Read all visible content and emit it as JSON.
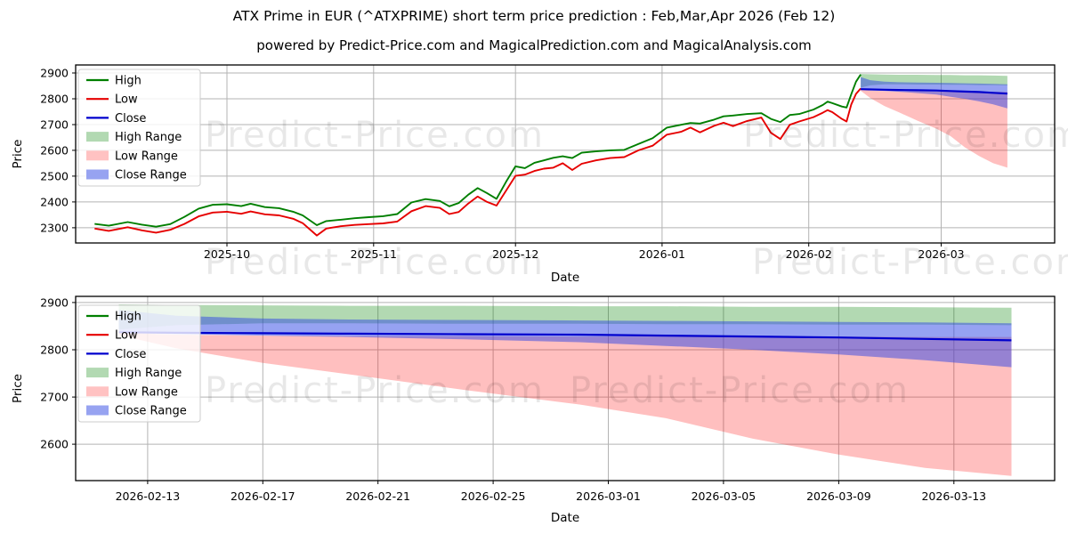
{
  "figure": {
    "title": "ATX Prime in EUR (^ATXPRIME) short term price prediction : Feb,Mar,Apr 2026 (Feb 12)",
    "subtitle": "powered by Predict-Price.com and MagicalPrediction.com and MagicalAnalysis.com",
    "watermark": "Predict-Price.com"
  },
  "colors": {
    "high": "#007f00",
    "low": "#e60000",
    "close": "#0000cd",
    "high_range": "rgba(0,128,0,0.30)",
    "low_range": "rgba(255,0,0,0.25)",
    "close_range": "rgba(45,70,230,0.50)",
    "grid": "#b3b3b3",
    "spine": "#000000",
    "watermark": "rgba(0,0,0,0.09)",
    "legend_bg": "rgba(255,255,255,0.8)",
    "legend_border": "#cccccc"
  },
  "legend": {
    "entries": [
      {
        "label": "High",
        "type": "line",
        "color": "#007f00"
      },
      {
        "label": "Low",
        "type": "line",
        "color": "#e60000"
      },
      {
        "label": "Close",
        "type": "line",
        "color": "#0000cd"
      },
      {
        "label": "High Range",
        "type": "patch",
        "color": "#b2d9b2"
      },
      {
        "label": "Low Range",
        "type": "patch",
        "color": "#ffc2c2"
      },
      {
        "label": "Close Range",
        "type": "patch",
        "color": "#97a3f1"
      }
    ]
  },
  "history": {
    "dates": [
      "2025-09-03",
      "2025-09-06",
      "2025-09-10",
      "2025-09-13",
      "2025-09-16",
      "2025-09-19",
      "2025-09-22",
      "2025-09-25",
      "2025-09-28",
      "2025-10-01",
      "2025-10-04",
      "2025-10-06",
      "2025-10-09",
      "2025-10-12",
      "2025-10-15",
      "2025-10-17",
      "2025-10-20",
      "2025-10-22",
      "2025-10-25",
      "2025-10-28",
      "2025-10-31",
      "2025-11-03",
      "2025-11-06",
      "2025-11-09",
      "2025-11-12",
      "2025-11-15",
      "2025-11-17",
      "2025-11-19",
      "2025-11-21",
      "2025-11-23",
      "2025-11-25",
      "2025-11-27",
      "2025-11-29",
      "2025-12-01",
      "2025-12-03",
      "2025-12-05",
      "2025-12-07",
      "2025-12-09",
      "2025-12-11",
      "2025-12-13",
      "2025-12-15",
      "2025-12-18",
      "2025-12-21",
      "2025-12-24",
      "2025-12-27",
      "2025-12-30",
      "2026-01-02",
      "2026-01-05",
      "2026-01-07",
      "2026-01-09",
      "2026-01-12",
      "2026-01-14",
      "2026-01-16",
      "2026-01-19",
      "2026-01-22",
      "2026-01-24",
      "2026-01-26",
      "2026-01-28",
      "2026-01-30",
      "2026-02-02",
      "2026-02-04",
      "2026-02-05",
      "2026-02-06",
      "2026-02-08",
      "2026-02-09",
      "2026-02-10",
      "2026-02-11",
      "2026-02-12"
    ],
    "high": [
      2315,
      2308,
      2322,
      2312,
      2304,
      2314,
      2342,
      2374,
      2389,
      2391,
      2384,
      2393,
      2380,
      2376,
      2362,
      2348,
      2310,
      2326,
      2331,
      2337,
      2341,
      2345,
      2353,
      2398,
      2411,
      2404,
      2383,
      2396,
      2428,
      2454,
      2434,
      2412,
      2478,
      2538,
      2531,
      2552,
      2561,
      2571,
      2577,
      2570,
      2591,
      2596,
      2600,
      2602,
      2625,
      2647,
      2688,
      2699,
      2706,
      2704,
      2719,
      2732,
      2735,
      2741,
      2744,
      2722,
      2710,
      2737,
      2741,
      2758,
      2776,
      2789,
      2783,
      2770,
      2766,
      2818,
      2866,
      2894
    ],
    "low": [
      2297,
      2288,
      2302,
      2290,
      2281,
      2292,
      2315,
      2344,
      2359,
      2362,
      2354,
      2363,
      2352,
      2348,
      2335,
      2318,
      2270,
      2297,
      2306,
      2311,
      2314,
      2317,
      2324,
      2364,
      2384,
      2377,
      2353,
      2361,
      2394,
      2421,
      2400,
      2386,
      2444,
      2501,
      2506,
      2520,
      2529,
      2533,
      2550,
      2524,
      2548,
      2561,
      2570,
      2574,
      2600,
      2618,
      2661,
      2672,
      2688,
      2670,
      2695,
      2707,
      2694,
      2714,
      2727,
      2668,
      2644,
      2699,
      2712,
      2729,
      2746,
      2756,
      2748,
      2722,
      2712,
      2778,
      2819,
      2840
    ]
  },
  "prediction": {
    "dates": [
      "2026-02-12",
      "2026-02-14",
      "2026-02-17",
      "2026-02-20",
      "2026-02-24",
      "2026-02-28",
      "2026-03-03",
      "2026-03-06",
      "2026-03-09",
      "2026-03-12",
      "2026-03-15"
    ],
    "close": [
      2837,
      2836,
      2835,
      2834,
      2833,
      2832,
      2830,
      2828,
      2826,
      2823,
      2820
    ],
    "close_top": [
      2884,
      2872,
      2866,
      2864,
      2863,
      2862,
      2861,
      2860,
      2859,
      2858,
      2856
    ],
    "close_bottom": [
      2836,
      2833,
      2830,
      2827,
      2822,
      2816,
      2808,
      2800,
      2790,
      2778,
      2763
    ],
    "high_top": [
      2896,
      2895,
      2894,
      2893,
      2893,
      2892,
      2892,
      2891,
      2891,
      2890,
      2889
    ],
    "high_bottom": [
      2843,
      2852,
      2856,
      2856,
      2855,
      2855,
      2854,
      2854,
      2853,
      2853,
      2852
    ],
    "low_top": [
      2836,
      2832,
      2830,
      2829,
      2829,
      2828,
      2828,
      2828,
      2828,
      2827,
      2827
    ],
    "low_bottom": [
      2831,
      2803,
      2772,
      2748,
      2715,
      2684,
      2655,
      2612,
      2578,
      2550,
      2533
    ]
  },
  "chart_data": [
    {
      "type": "line",
      "name": "history-and-prediction-chart",
      "title": "",
      "xlabel": "Date",
      "ylabel": "Price",
      "grid": true,
      "legend_position": "upper left",
      "ylim": [
        2241,
        2931
      ],
      "xlim": [
        "2025-08-30",
        "2026-03-25"
      ],
      "y_ticks": [
        2300,
        2400,
        2500,
        2600,
        2700,
        2800,
        2900
      ],
      "x_ticks": [
        {
          "date": "2025-10-01",
          "label": "2025-10"
        },
        {
          "date": "2025-11-01",
          "label": "2025-11"
        },
        {
          "date": "2025-12-01",
          "label": "2025-12"
        },
        {
          "date": "2026-01-01",
          "label": "2026-01"
        },
        {
          "date": "2026-02-01",
          "label": "2026-02"
        },
        {
          "date": "2026-03-01",
          "label": "2026-03"
        }
      ],
      "series": [
        "history",
        "prediction"
      ]
    },
    {
      "type": "line",
      "name": "prediction-detail-chart",
      "title": "",
      "xlabel": "Date",
      "ylabel": "Price",
      "grid": true,
      "legend_position": "upper left",
      "ylim": [
        2523,
        2913
      ],
      "xlim": [
        "2026-02-10T12:00",
        "2026-03-16T12:00"
      ],
      "y_ticks": [
        2600,
        2700,
        2800,
        2900
      ],
      "x_ticks": [
        {
          "date": "2026-02-13",
          "label": "2026-02-13"
        },
        {
          "date": "2026-02-17",
          "label": "2026-02-17"
        },
        {
          "date": "2026-02-21",
          "label": "2026-02-21"
        },
        {
          "date": "2026-02-25",
          "label": "2026-02-25"
        },
        {
          "date": "2026-03-01",
          "label": "2026-03-01"
        },
        {
          "date": "2026-03-05",
          "label": "2026-03-05"
        },
        {
          "date": "2026-03-09",
          "label": "2026-03-09"
        },
        {
          "date": "2026-03-13",
          "label": "2026-03-13"
        }
      ],
      "series": [
        "prediction"
      ]
    }
  ]
}
